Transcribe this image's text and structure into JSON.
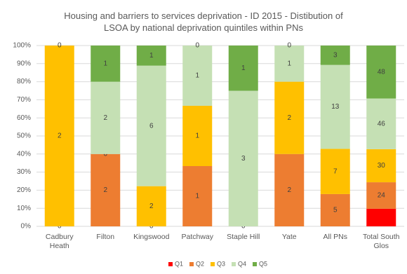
{
  "chart_data": {
    "type": "bar",
    "stacked": "percent",
    "title": "Housing and barriers to services deprivation - ID 2015 - Distibution of LSOA by national deprivation quintiles within PNs",
    "categories": [
      "Cadbury Heath",
      "Filton",
      "Kingswood",
      "Patchway",
      "Staple Hill",
      "Yate",
      "All PNs",
      "Total South Glos"
    ],
    "series": [
      {
        "name": "Q1",
        "color": "#ff0000",
        "values": [
          null,
          null,
          null,
          null,
          null,
          null,
          null,
          16
        ],
        "value_labels": [
          null,
          null,
          null,
          null,
          null,
          null,
          null,
          null
        ]
      },
      {
        "name": "Q2",
        "color": "#ed7d31",
        "values": [
          0,
          2,
          0,
          1,
          null,
          2,
          5,
          24
        ]
      },
      {
        "name": "Q3",
        "color": "#ffc000",
        "values": [
          2,
          0,
          2,
          1,
          0,
          2,
          7,
          30
        ]
      },
      {
        "name": "Q4",
        "color": "#c5e0b4",
        "values": [
          0,
          2,
          6,
          1,
          3,
          1,
          13,
          46
        ]
      },
      {
        "name": "Q5",
        "color": "#70ad47",
        "values": [
          null,
          1,
          1,
          0,
          1,
          0,
          3,
          48
        ]
      }
    ],
    "ylim": [
      0,
      100
    ],
    "yticks": [
      {
        "value": 0,
        "label": "0%"
      },
      {
        "value": 10,
        "label": "10%"
      },
      {
        "value": 20,
        "label": "20%"
      },
      {
        "value": 30,
        "label": "30%"
      },
      {
        "value": 40,
        "label": "40%"
      },
      {
        "value": 50,
        "label": "50%"
      },
      {
        "value": 60,
        "label": "60%"
      },
      {
        "value": 70,
        "label": "70%"
      },
      {
        "value": 80,
        "label": "80%"
      },
      {
        "value": 90,
        "label": "90%"
      },
      {
        "value": 100,
        "label": "100%"
      }
    ],
    "grid": true,
    "legend": "bottom"
  }
}
